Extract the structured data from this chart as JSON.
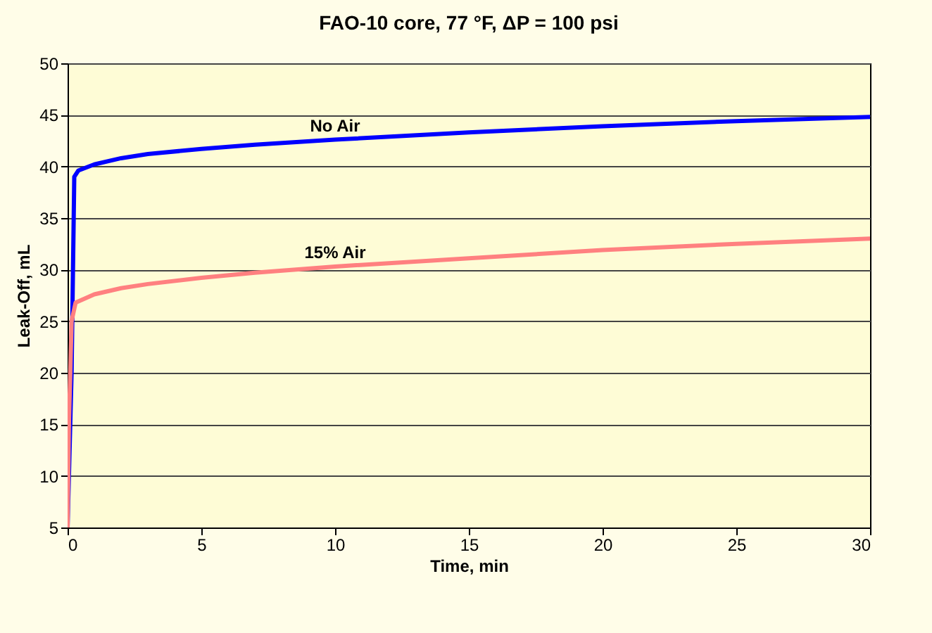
{
  "chart_data": {
    "type": "line",
    "title": "FAO-10 core, 77 °F, ΔP = 100 psi",
    "xlabel": "Time, min",
    "ylabel": "Leak-Off, mL",
    "series": [
      {
        "name": "No Air",
        "color": "#0000ff",
        "x": [
          0,
          0.15,
          0.25,
          0.4,
          1,
          2,
          3,
          5,
          7,
          10,
          15,
          20,
          25,
          30
        ],
        "values": [
          5,
          20,
          39,
          39.6,
          40.2,
          40.8,
          41.2,
          41.7,
          42.1,
          42.6,
          43.3,
          43.9,
          44.4,
          44.8
        ]
      },
      {
        "name": "15% Air",
        "color": "#ff8080",
        "x": [
          0,
          0.05,
          0.15,
          0.3,
          1,
          2,
          3,
          5,
          7,
          10,
          15,
          20,
          25,
          30
        ],
        "values": [
          5,
          15,
          25,
          26.8,
          27.6,
          28.2,
          28.6,
          29.2,
          29.7,
          30.3,
          31.1,
          31.9,
          32.5,
          33
        ]
      }
    ],
    "xlim": [
      0,
      30
    ],
    "xticks": [
      0,
      5,
      10,
      15,
      20,
      25,
      30
    ],
    "ylim": [
      5,
      50
    ],
    "yticks": [
      5,
      10,
      15,
      20,
      25,
      30,
      35,
      40,
      45,
      50
    ],
    "grid": "y",
    "legend": false,
    "marker": "none",
    "line_style": "solid"
  }
}
